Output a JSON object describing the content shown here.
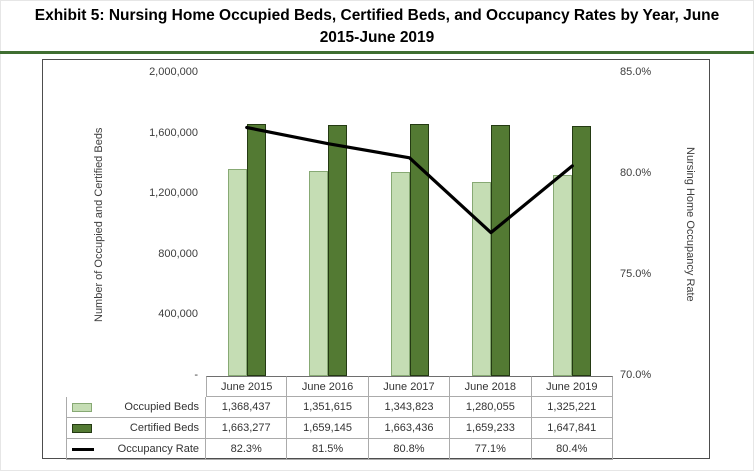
{
  "title": "Exhibit 5: Nursing Home Occupied Beds, Certified Beds, and Occupancy Rates by Year, June 2015-June 2019",
  "chart_data": {
    "type": "bar+line",
    "categories": [
      "June 2015",
      "June 2016",
      "June 2017",
      "June 2018",
      "June 2019"
    ],
    "series": [
      {
        "name": "Occupied Beds",
        "type": "bar",
        "axis": "left",
        "color": "#c5ddb4",
        "border": "#87a974",
        "values": [
          1368437,
          1351615,
          1343823,
          1280055,
          1325221
        ]
      },
      {
        "name": "Certified Beds",
        "type": "bar",
        "axis": "left",
        "color": "#537a33",
        "border": "#243a13",
        "values": [
          1663277,
          1659145,
          1663436,
          1659233,
          1647841
        ]
      },
      {
        "name": "Occupancy Rate",
        "type": "line",
        "axis": "right",
        "color": "#000000",
        "values": [
          82.3,
          81.5,
          80.8,
          77.1,
          80.4
        ]
      }
    ],
    "left_axis": {
      "label": "Number of Occupied and Certified Beds",
      "min": 0,
      "max": 2000000,
      "ticks": [
        "2,000,000",
        "1,600,000",
        "1,200,000",
        "800,000",
        "400,000",
        "-"
      ]
    },
    "right_axis": {
      "label": "Nursing Home Occupancy Rate",
      "min": 70,
      "max": 85,
      "ticks": [
        "85.0%",
        "80.0%",
        "75.0%",
        "70.0%"
      ]
    },
    "grid": false,
    "legend_position": "data-table-left"
  },
  "table": {
    "rows": [
      {
        "label": "Occupied Beds",
        "key_type": "bar",
        "key_color": "#c5ddb4",
        "key_border": "#87a974",
        "values": [
          "1,368,437",
          "1,351,615",
          "1,343,823",
          "1,280,055",
          "1,325,221"
        ]
      },
      {
        "label": "Certified Beds",
        "key_type": "bar",
        "key_color": "#537a33",
        "key_border": "#243a13",
        "values": [
          "1,663,277",
          "1,659,145",
          "1,663,436",
          "1,659,233",
          "1,647,841"
        ]
      },
      {
        "label": "Occupancy Rate",
        "key_type": "line",
        "key_color": "#000000",
        "values": [
          "82.3%",
          "81.5%",
          "80.8%",
          "77.1%",
          "80.4%"
        ]
      }
    ]
  },
  "colors": {
    "occupied_beds": "#c5ddb4",
    "certified_beds": "#537a33",
    "occupancy_line": "#000000",
    "title_rule": "#3f6e31"
  }
}
